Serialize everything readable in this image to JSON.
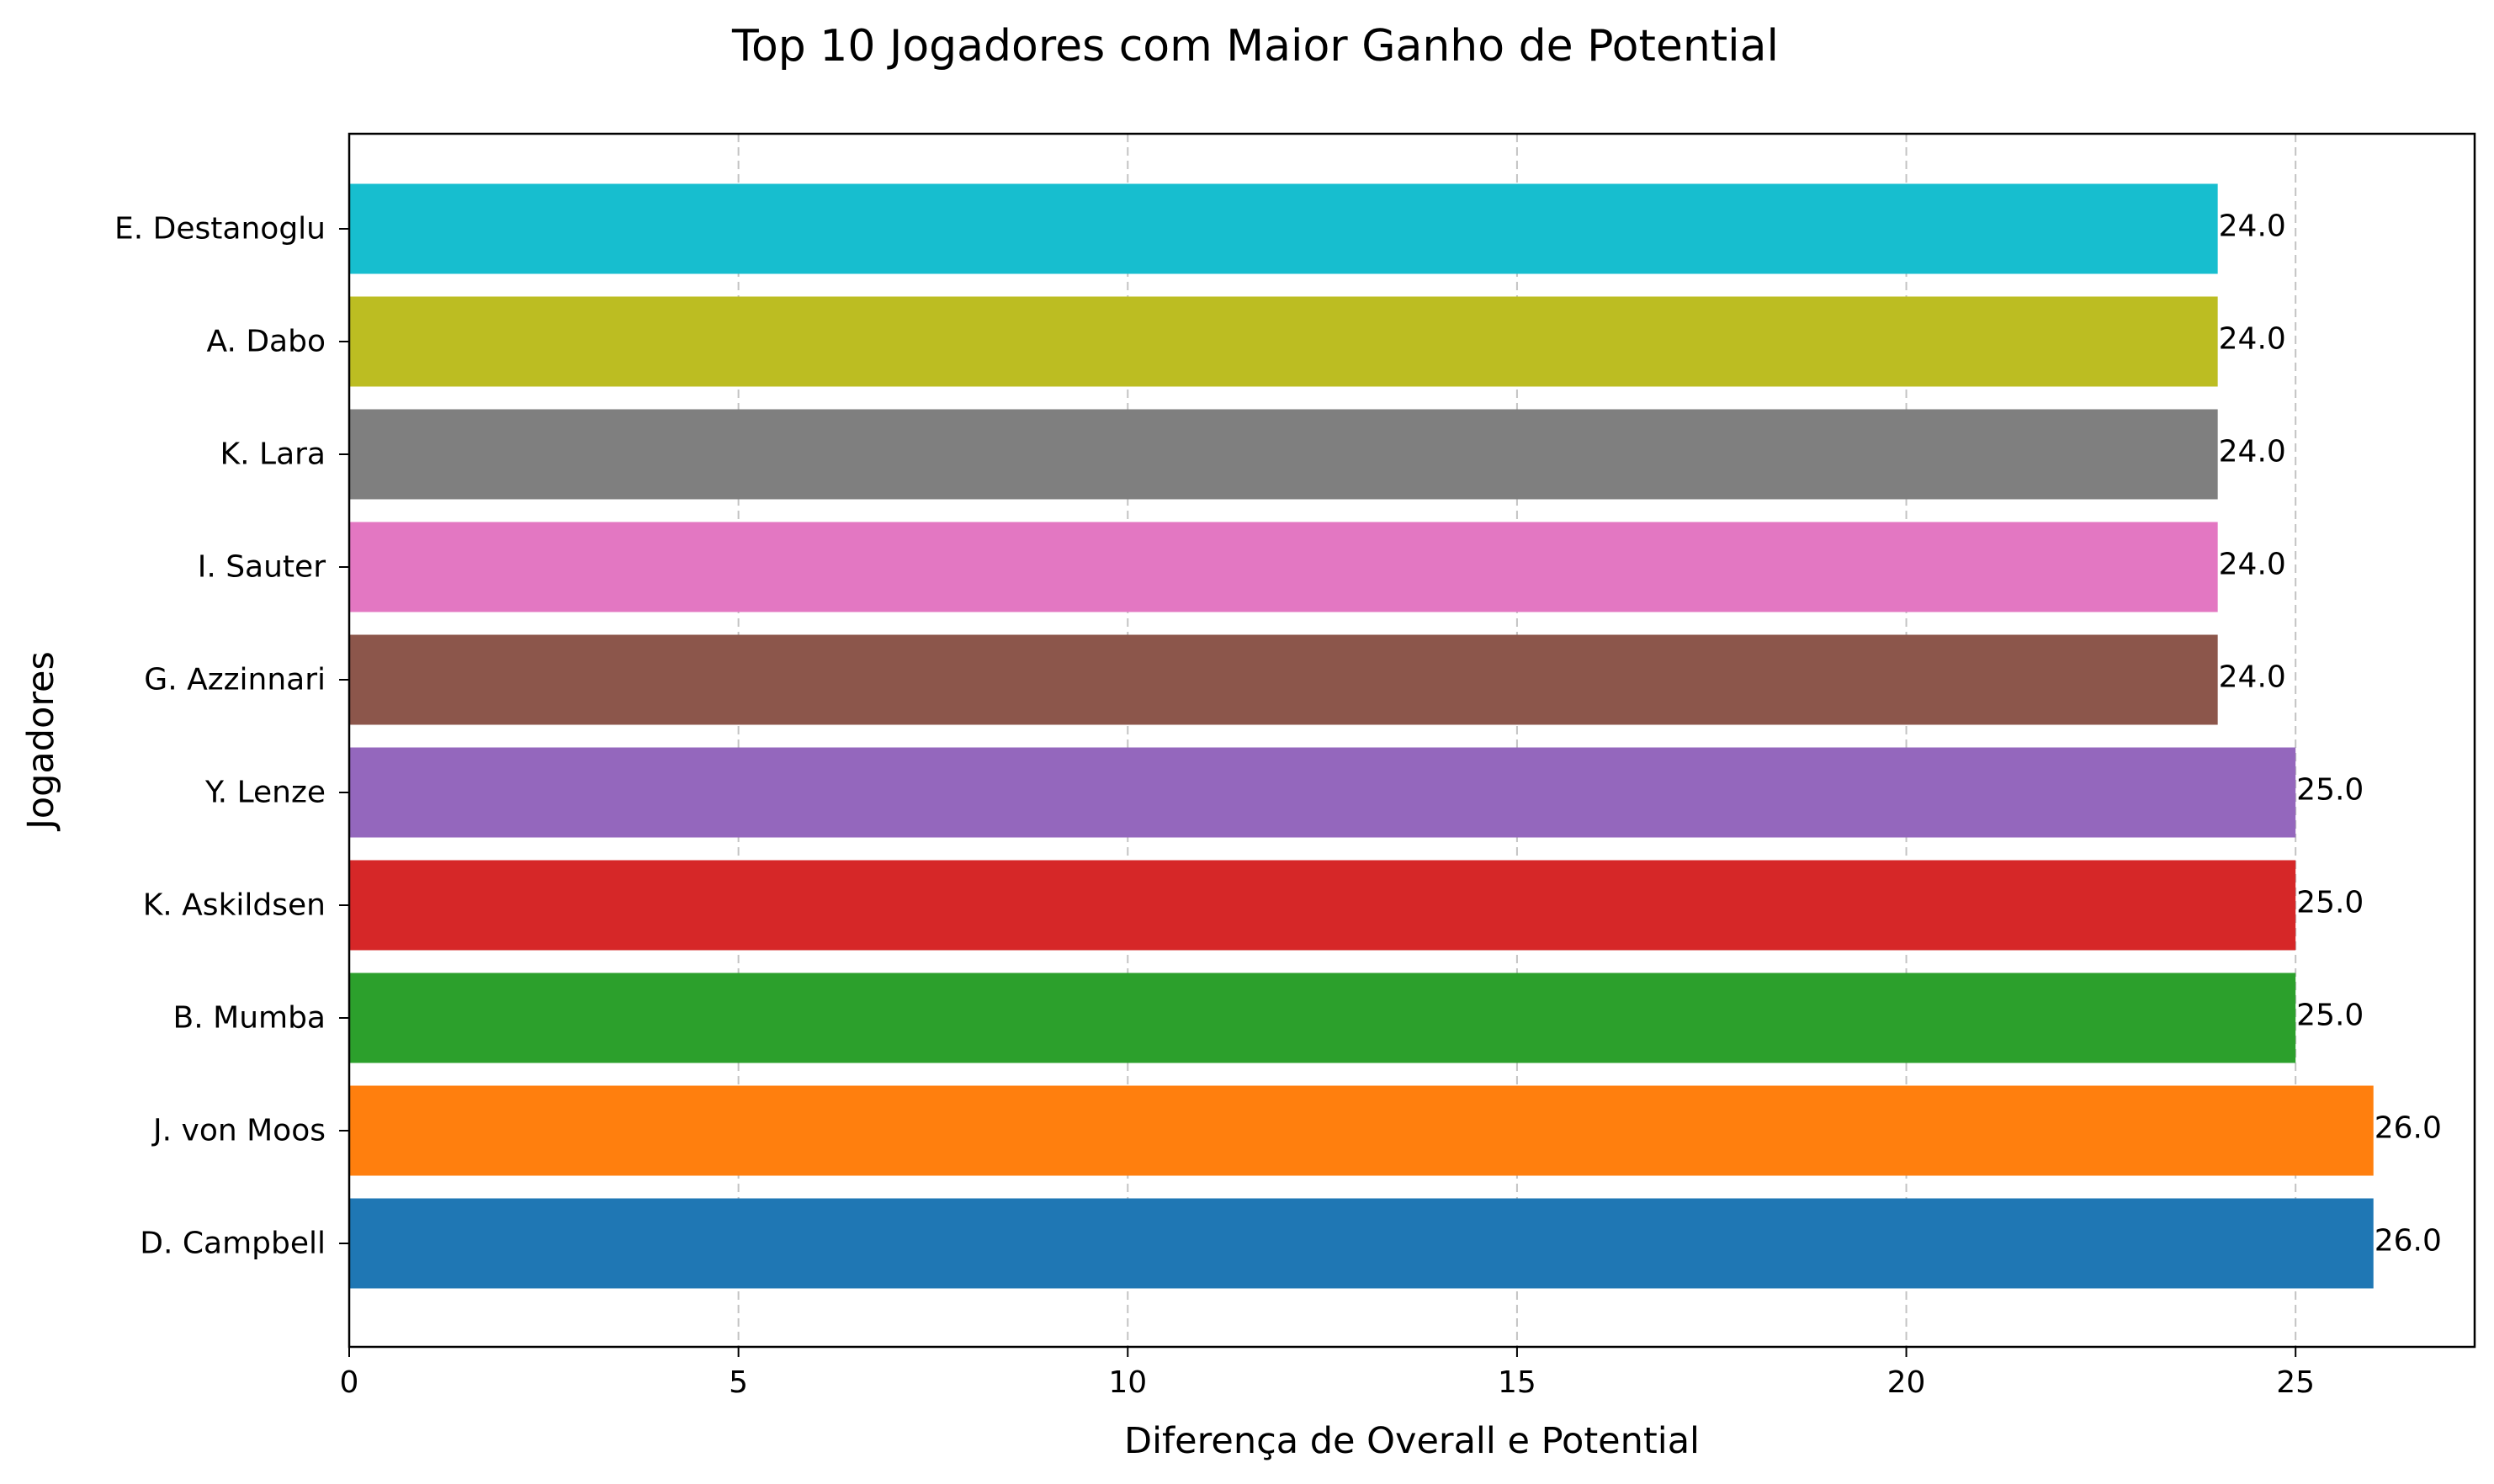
{
  "chart_data": {
    "type": "bar",
    "orientation": "horizontal",
    "title": "Top 10 Jogadores com Maior Ganho de Potential",
    "xlabel": "Diferença de Overall e Potential",
    "ylabel": "Jogadores",
    "xlim": [
      0,
      27.3
    ],
    "x_ticks": [
      0,
      5,
      10,
      15,
      20,
      25
    ],
    "grid": "x-dashed",
    "legend": "none",
    "categories": [
      "D. Campbell",
      "J. von Moos",
      "B. Mumba",
      "K. Askildsen",
      "Y. Lenze",
      "G. Azzinnari",
      "I. Sauter",
      "K. Lara",
      "A. Dabo",
      "E. Destanoglu"
    ],
    "values": [
      26,
      26,
      25,
      25,
      25,
      24,
      24,
      24,
      24,
      24
    ],
    "value_labels": [
      "26.0",
      "26.0",
      "25.0",
      "25.0",
      "25.0",
      "24.0",
      "24.0",
      "24.0",
      "24.0",
      "24.0"
    ],
    "colors": [
      "#1f77b4",
      "#ff7f0e",
      "#2ca02c",
      "#d62728",
      "#9467bd",
      "#8c564b",
      "#e377c2",
      "#7f7f7f",
      "#bcbd22",
      "#17becf"
    ]
  }
}
